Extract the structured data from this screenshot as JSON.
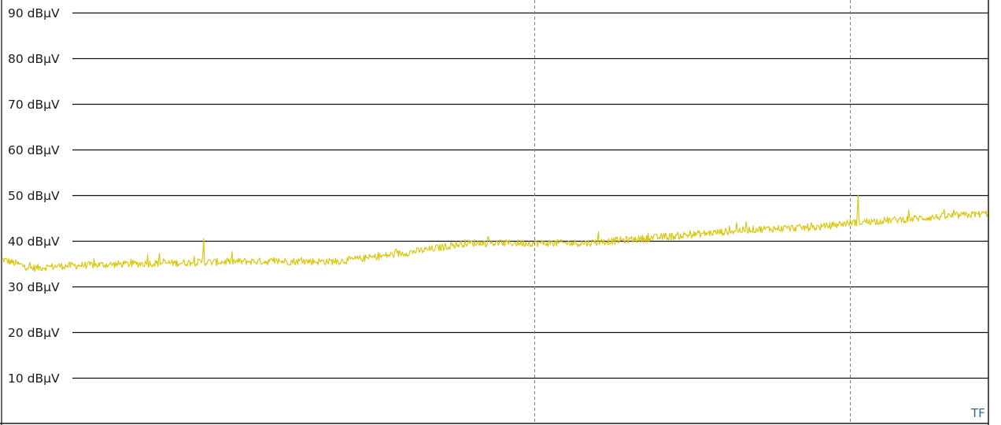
{
  "chart_data": {
    "type": "line",
    "title": "",
    "xlabel": "",
    "ylabel": "",
    "y_unit": "dBµV",
    "ylim": [
      0,
      92
    ],
    "xlim": [
      0,
      1000
    ],
    "y_ticks": [
      {
        "value": 90,
        "label": "90 dBµV"
      },
      {
        "value": 80,
        "label": "80 dBµV"
      },
      {
        "value": 70,
        "label": "70 dBµV"
      },
      {
        "value": 60,
        "label": "60 dBµV"
      },
      {
        "value": 50,
        "label": "50 dBµV"
      },
      {
        "value": 40,
        "label": "40 dBµV"
      },
      {
        "value": 30,
        "label": "30 dBµV"
      },
      {
        "value": 20,
        "label": "20 dBµV"
      },
      {
        "value": 10,
        "label": "10 dBµV"
      }
    ],
    "grid": true,
    "vertical_markers": [
      540,
      860
    ],
    "series": [
      {
        "color": "#d9c400",
        "baseline": [
          [
            0,
            36.0
          ],
          [
            30,
            34.0
          ],
          [
            60,
            34.5
          ],
          [
            140,
            35.0
          ],
          [
            250,
            35.5
          ],
          [
            340,
            35.5
          ],
          [
            380,
            36.5
          ],
          [
            430,
            38.0
          ],
          [
            470,
            39.5
          ],
          [
            540,
            39.5
          ],
          [
            590,
            39.5
          ],
          [
            680,
            41.0
          ],
          [
            760,
            42.5
          ],
          [
            830,
            43.0
          ],
          [
            860,
            44.0
          ],
          [
            900,
            44.5
          ],
          [
            1000,
            46.0
          ]
        ],
        "peaks": [
          [
            148,
            37.0
          ],
          [
            160,
            37.3
          ],
          [
            205,
            40.5
          ],
          [
            440,
            39.0
          ],
          [
            605,
            42.0
          ],
          [
            745,
            44.0
          ],
          [
            868,
            50.0
          ]
        ]
      }
    ],
    "corner_label": "TF"
  }
}
